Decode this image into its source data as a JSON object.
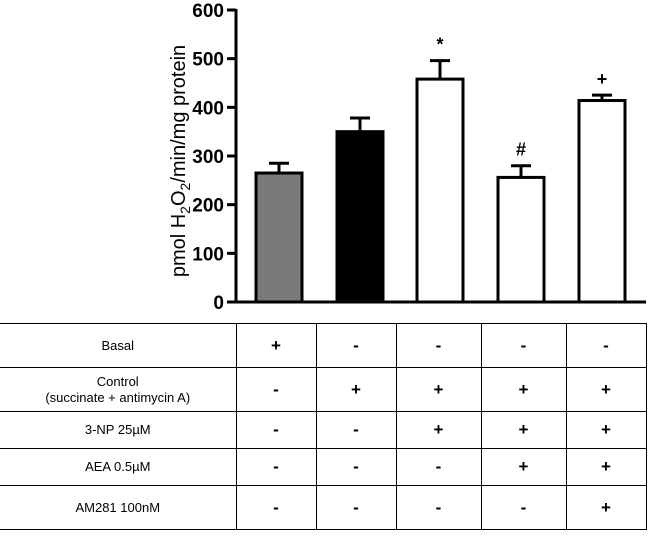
{
  "chart_data": {
    "type": "bar",
    "y_axis": {
      "label_parts": [
        "pmol H",
        "2",
        "O",
        "2",
        "/min/mg protein"
      ],
      "ylim": [
        0,
        600
      ],
      "ticks": [
        "0",
        "100",
        "200",
        "300",
        "400",
        "500",
        "600"
      ],
      "tick_values": [
        0,
        100,
        200,
        300,
        400,
        500,
        600
      ]
    },
    "bars": [
      {
        "value": 265,
        "error": 20,
        "fill": "#7a7a7a",
        "annotation": ""
      },
      {
        "value": 350,
        "error": 28,
        "fill": "#000000",
        "annotation": ""
      },
      {
        "value": 458,
        "error": 38,
        "fill": "#ffffff",
        "annotation": "*"
      },
      {
        "value": 256,
        "error": 24,
        "fill": "#ffffff",
        "annotation": "#"
      },
      {
        "value": 414,
        "error": 11,
        "fill": "#ffffff",
        "annotation": "+"
      }
    ],
    "grid": false,
    "legend": "none"
  },
  "conditions_table": {
    "rows": [
      {
        "label": [
          "Basal"
        ],
        "marks": [
          "+",
          "-",
          "-",
          "-",
          "-"
        ]
      },
      {
        "label": [
          "Control",
          "(succinate + antimycin A)"
        ],
        "marks": [
          "-",
          "+",
          "+",
          "+",
          "+"
        ]
      },
      {
        "label": [
          "3-NP 25µM"
        ],
        "marks": [
          "-",
          "-",
          "+",
          "+",
          "+"
        ]
      },
      {
        "label": [
          "AEA 0.5µM"
        ],
        "marks": [
          "-",
          "-",
          "-",
          "+",
          "+"
        ]
      },
      {
        "label": [
          "AM281  100nM"
        ],
        "marks": [
          "-",
          "-",
          "-",
          "-",
          "+"
        ]
      }
    ]
  }
}
